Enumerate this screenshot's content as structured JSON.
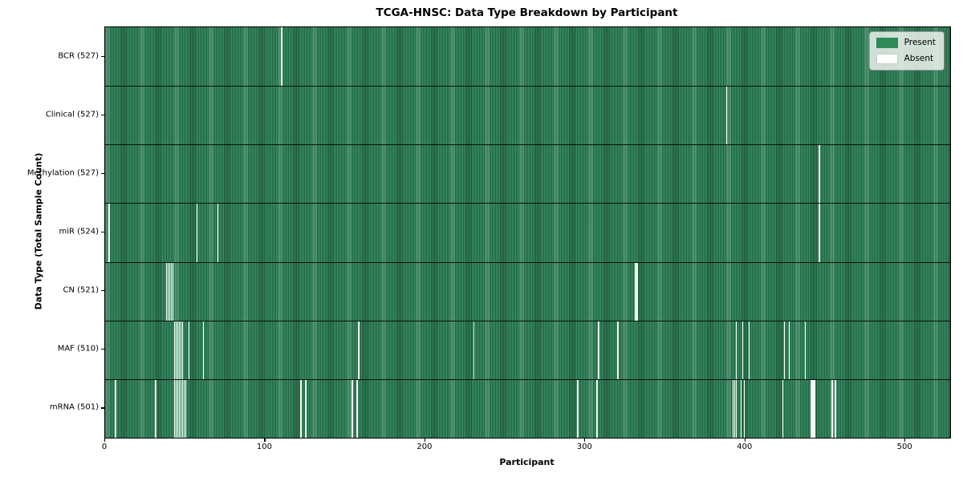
{
  "chart_data": {
    "type": "heatmap",
    "title": "TCGA-HNSC: Data Type Breakdown by Participant",
    "xlabel": "Participant",
    "ylabel": "Data Type (Total Sample Count)",
    "x_range": [
      0,
      528
    ],
    "x_ticks": [
      0,
      100,
      200,
      300,
      400,
      500
    ],
    "grid": false,
    "legend_position": "upper right",
    "legend_items": [
      {
        "label": "Present",
        "color": "#2e8b57"
      },
      {
        "label": "Absent",
        "color": "#ffffff"
      }
    ],
    "colors": {
      "present_base": "#2e8b57",
      "present_stripe_dark": "#225f40",
      "present_stripe_light": "#3a9468",
      "absent": "#f7f7f5",
      "row_separator": "#06130c"
    },
    "rows": [
      {
        "data_type": "BCR",
        "label": "BCR (527)",
        "total_samples": 527,
        "absent_participants": [
          110
        ]
      },
      {
        "data_type": "Clinical",
        "label": "Clinical (527)",
        "total_samples": 527,
        "absent_participants": [
          388
        ]
      },
      {
        "data_type": "Methylation",
        "label": "Methylation (527)",
        "total_samples": 527,
        "absent_participants": [
          446
        ]
      },
      {
        "data_type": "miR",
        "label": "miR (524)",
        "total_samples": 524,
        "absent_participants": [
          2,
          57,
          70,
          446
        ]
      },
      {
        "data_type": "CN",
        "label": "CN (521)",
        "total_samples": 521,
        "absent_participants": [
          38,
          39,
          40,
          41,
          42,
          331,
          332
        ]
      },
      {
        "data_type": "MAF",
        "label": "MAF (510)",
        "total_samples": 510,
        "absent_participants": [
          43,
          44,
          45,
          46,
          47,
          48,
          52,
          61,
          158,
          230,
          308,
          320,
          394,
          398,
          402,
          424,
          427,
          437
        ]
      },
      {
        "data_type": "mRNA",
        "label": "mRNA (501)",
        "total_samples": 501,
        "absent_participants": [
          6,
          31,
          43,
          44,
          45,
          46,
          47,
          48,
          49,
          50,
          122,
          125,
          154,
          157,
          295,
          307,
          392,
          393,
          394,
          397,
          399,
          423,
          441,
          442,
          443,
          454,
          456
        ]
      }
    ]
  }
}
